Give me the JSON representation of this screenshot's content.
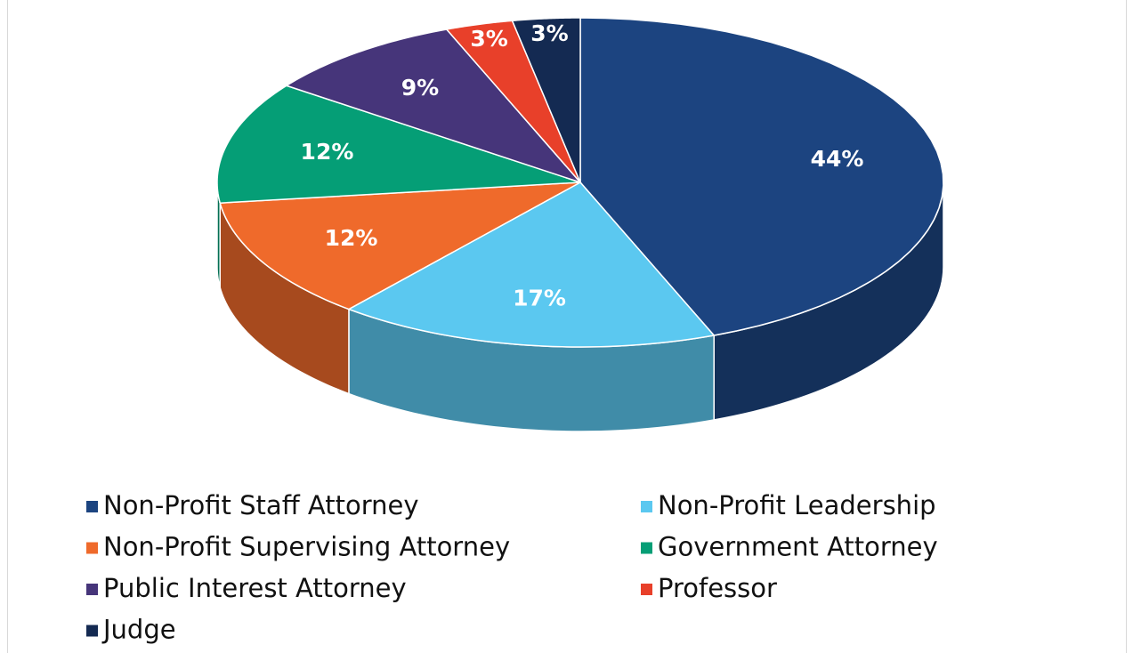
{
  "chart_data": {
    "type": "pie",
    "categories": [
      "Non-Profit Staff Attorney",
      "Non-Profit Leadership",
      "Non-Profit Supervising Attorney",
      "Government Attorney",
      "Public Interest Attorney",
      "Professor",
      "Judge"
    ],
    "values": [
      44,
      17,
      12,
      12,
      9,
      3,
      3
    ],
    "value_labels": [
      "44%",
      "17%",
      "12%",
      "12%",
      "9%",
      "3%",
      "3%"
    ],
    "colors": [
      "#1c4480",
      "#5bc8f0",
      "#ef6a2b",
      "#059e76",
      "#46357a",
      "#e8402a",
      "#142a52"
    ],
    "legend": "bottom"
  }
}
